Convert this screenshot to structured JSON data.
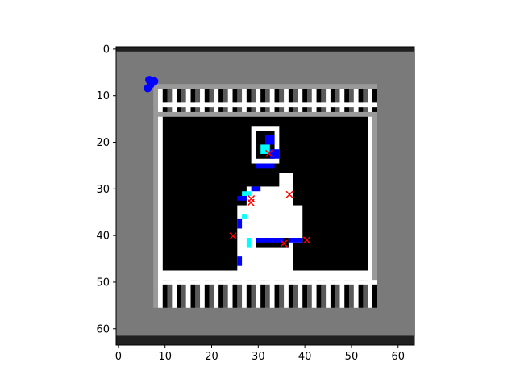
{
  "chart_data": {
    "type": "scatter",
    "background": "image",
    "x_ticks": [
      0,
      10,
      20,
      30,
      40,
      50,
      60
    ],
    "y_ticks": [
      0,
      10,
      20,
      30,
      40,
      50,
      60
    ],
    "xlim": [
      -0.5,
      63.5
    ],
    "ylim": [
      63.5,
      -0.5
    ],
    "y_inverted": true,
    "series": [
      {
        "marker": "x",
        "color": "#ff0000",
        "points": [
          [
            32.3,
            22.4
          ],
          [
            36.7,
            31.2
          ],
          [
            28.5,
            32.1
          ],
          [
            28.4,
            32.9
          ],
          [
            24.6,
            40.1
          ],
          [
            35.5,
            41.7
          ],
          [
            40.4,
            41.0
          ]
        ]
      },
      {
        "marker": "o",
        "color": "#0000ff",
        "points": [
          [
            6.6,
            6.6
          ],
          [
            7.7,
            6.9
          ],
          [
            6.9,
            7.6
          ],
          [
            6.3,
            8.4
          ]
        ]
      }
    ],
    "image_palette": {
      "gray": "#7a7a7a",
      "black": "#000000",
      "white": "#ffffff",
      "blue": "#0000ff",
      "cyan": "#00ffff",
      "dark_band": "#202020"
    }
  }
}
